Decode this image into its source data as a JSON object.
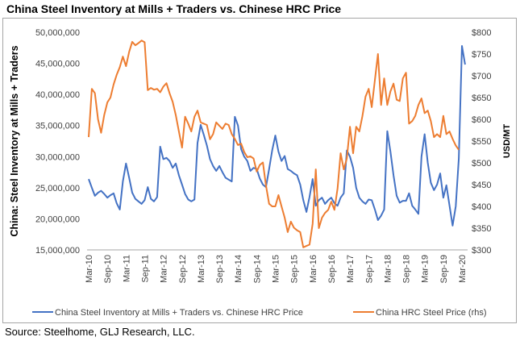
{
  "title": "China Steel Inventory at Mills + Traders vs. Chinese HRC Price",
  "source": "Source: Steelhome, GLJ Research, LLC.",
  "chart_data": {
    "type": "line",
    "title": "China Steel Inventory at Mills + Traders vs. Chinese HRC Price",
    "ylabel": "China: Steel Inventory at Mills + Traders",
    "y2label": "USD/MT",
    "xlabel": "",
    "ylim": [
      15000000,
      50000000
    ],
    "y2lim": [
      300,
      800
    ],
    "yticks": [
      "15,000,000",
      "20,000,000",
      "25,000,000",
      "30,000,000",
      "35,000,000",
      "40,000,000",
      "45,000,000",
      "50,000,000"
    ],
    "y2ticks": [
      "$300",
      "$350",
      "$400",
      "$450",
      "$500",
      "$550",
      "$600",
      "$650",
      "$700",
      "$750",
      "$800"
    ],
    "xticks": [
      "Mar-10",
      "Sep-10",
      "Mar-11",
      "Sep-11",
      "Mar-12",
      "Sep-12",
      "Mar-13",
      "Sep-13",
      "Mar-14",
      "Sep-14",
      "Mar-15",
      "Sep-15",
      "Mar-16",
      "Sep-16",
      "Mar-17",
      "Sep-17",
      "Mar-18",
      "Sep-18",
      "Mar-19",
      "Sep-19",
      "Mar-20"
    ],
    "x_start": "2010-03",
    "x_frequency": "monthly",
    "grid": false,
    "legend_position": "bottom",
    "series": [
      {
        "name": "China Steel Inventory at Mills + Traders vs. Chinese HRC Price",
        "axis": "left",
        "color": "#4472c4",
        "unit_multiplier": 1000000,
        "values": [
          26.4,
          25.0,
          23.7,
          24.2,
          24.5,
          24.0,
          23.4,
          23.8,
          24.1,
          22.5,
          21.5,
          26.0,
          28.9,
          26.6,
          24.2,
          23.2,
          22.8,
          22.4,
          23.0,
          25.1,
          23.2,
          22.8,
          23.5,
          31.6,
          29.6,
          29.8,
          29.3,
          28.2,
          28.9,
          27.0,
          25.5,
          24.0,
          23.1,
          22.8,
          23.1,
          32.2,
          35.1,
          33.5,
          31.8,
          29.6,
          28.5,
          27.7,
          28.5,
          27.5,
          26.6,
          26.3,
          26.0,
          36.4,
          35.0,
          31.2,
          30.0,
          29.3,
          27.7,
          28.2,
          28.0,
          26.5,
          25.5,
          25.1,
          28.0,
          31.0,
          33.4,
          30.8,
          29.3,
          30.1,
          28.0,
          27.7,
          27.3,
          27.0,
          25.5,
          23.0,
          21.1,
          23.5,
          26.4,
          22.1,
          23.0,
          23.4,
          22.4,
          23.0,
          23.4,
          22.5,
          22.1,
          23.4,
          24.1,
          31.0,
          30.0,
          28.2,
          25.0,
          23.4,
          22.8,
          22.4,
          23.1,
          23.0,
          21.5,
          19.8,
          20.5,
          21.5,
          34.1,
          30.8,
          27.0,
          23.7,
          22.6,
          22.9,
          22.9,
          24.1,
          22.1,
          21.5,
          20.8,
          30.0,
          33.6,
          29.0,
          25.8,
          24.6,
          25.5,
          27.3,
          23.4,
          25.4,
          22.1,
          18.9,
          22.0,
          29.7,
          47.8,
          44.8
        ]
      },
      {
        "name": "China HRC Steel Price (rhs)",
        "axis": "right",
        "color": "#ed7d31",
        "values": [
          559,
          670,
          660,
          600,
          569,
          610,
          639,
          650,
          680,
          702,
          720,
          744,
          722,
          755,
          778,
          770,
          775,
          781,
          777,
          667,
          672,
          668,
          670,
          662,
          675,
          683,
          660,
          640,
          610,
          572,
          535,
          606,
          590,
          572,
          606,
          620,
          593,
          590,
          587,
          554,
          566,
          593,
          585,
          578,
          590,
          587,
          566,
          555,
          541,
          544,
          525,
          513,
          515,
          510,
          480,
          495,
          501,
          448,
          406,
          400,
          400,
          426,
          400,
          374,
          341,
          365,
          351,
          345,
          341,
          306,
          309,
          312,
          360,
          485,
          350,
          374,
          385,
          392,
          411,
          392,
          441,
          522,
          485,
          510,
          583,
          522,
          583,
          572,
          607,
          652,
          670,
          628,
          690,
          750,
          633,
          694,
          633,
          664,
          682,
          645,
          642,
          694,
          707,
          590,
          596,
          608,
          633,
          648,
          614,
          620,
          596,
          559,
          566,
          559,
          608,
          566,
          572,
          555,
          540,
          530
        ]
      }
    ]
  }
}
